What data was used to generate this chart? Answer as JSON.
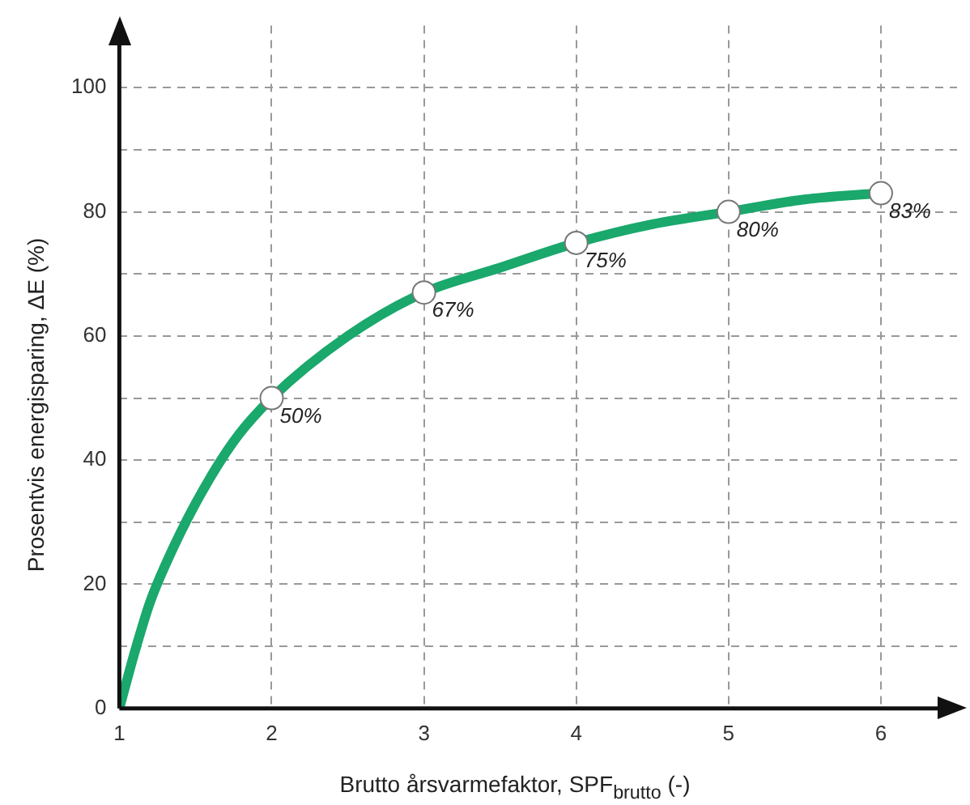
{
  "chart_data": {
    "type": "line",
    "xlabel": "Brutto årsvarmefaktor, SPF$_{brutto}$ (-)",
    "ylabel": "Prosentvis energisparing, ΔE (%)",
    "xlim": [
      1,
      6.5
    ],
    "ylim": [
      0,
      110
    ],
    "xticks": [
      1,
      2,
      3,
      4,
      5,
      6
    ],
    "yticks": [
      0,
      {
        "value": 10,
        "label": null
      },
      20,
      {
        "value": 30,
        "label": null
      },
      40,
      {
        "value": 50,
        "label": null
      },
      60,
      {
        "value": 70,
        "label": null
      },
      80,
      {
        "value": 90,
        "label": null
      },
      100
    ],
    "grid": true,
    "legend": false,
    "line_style": "solid",
    "series": [
      {
        "color": "#1aa86c",
        "marker": "none",
        "x": [
          1,
          1.1,
          1.2,
          1.3,
          1.5,
          1.75,
          2,
          2.5,
          3,
          3.5,
          4,
          4.5,
          5,
          5.5,
          6
        ],
        "values": [
          0,
          9,
          17,
          23,
          33,
          43,
          50,
          60,
          67,
          71,
          75,
          78,
          80,
          82,
          83
        ]
      },
      {
        "type": "scatter",
        "color": "#ffffff",
        "marker": "circle",
        "x": [
          2,
          3,
          4,
          5,
          6
        ],
        "values": [
          50,
          67,
          75,
          80,
          83
        ],
        "value_labels": [
          "50%",
          "67%",
          "75%",
          "80%",
          "83%"
        ]
      }
    ]
  }
}
